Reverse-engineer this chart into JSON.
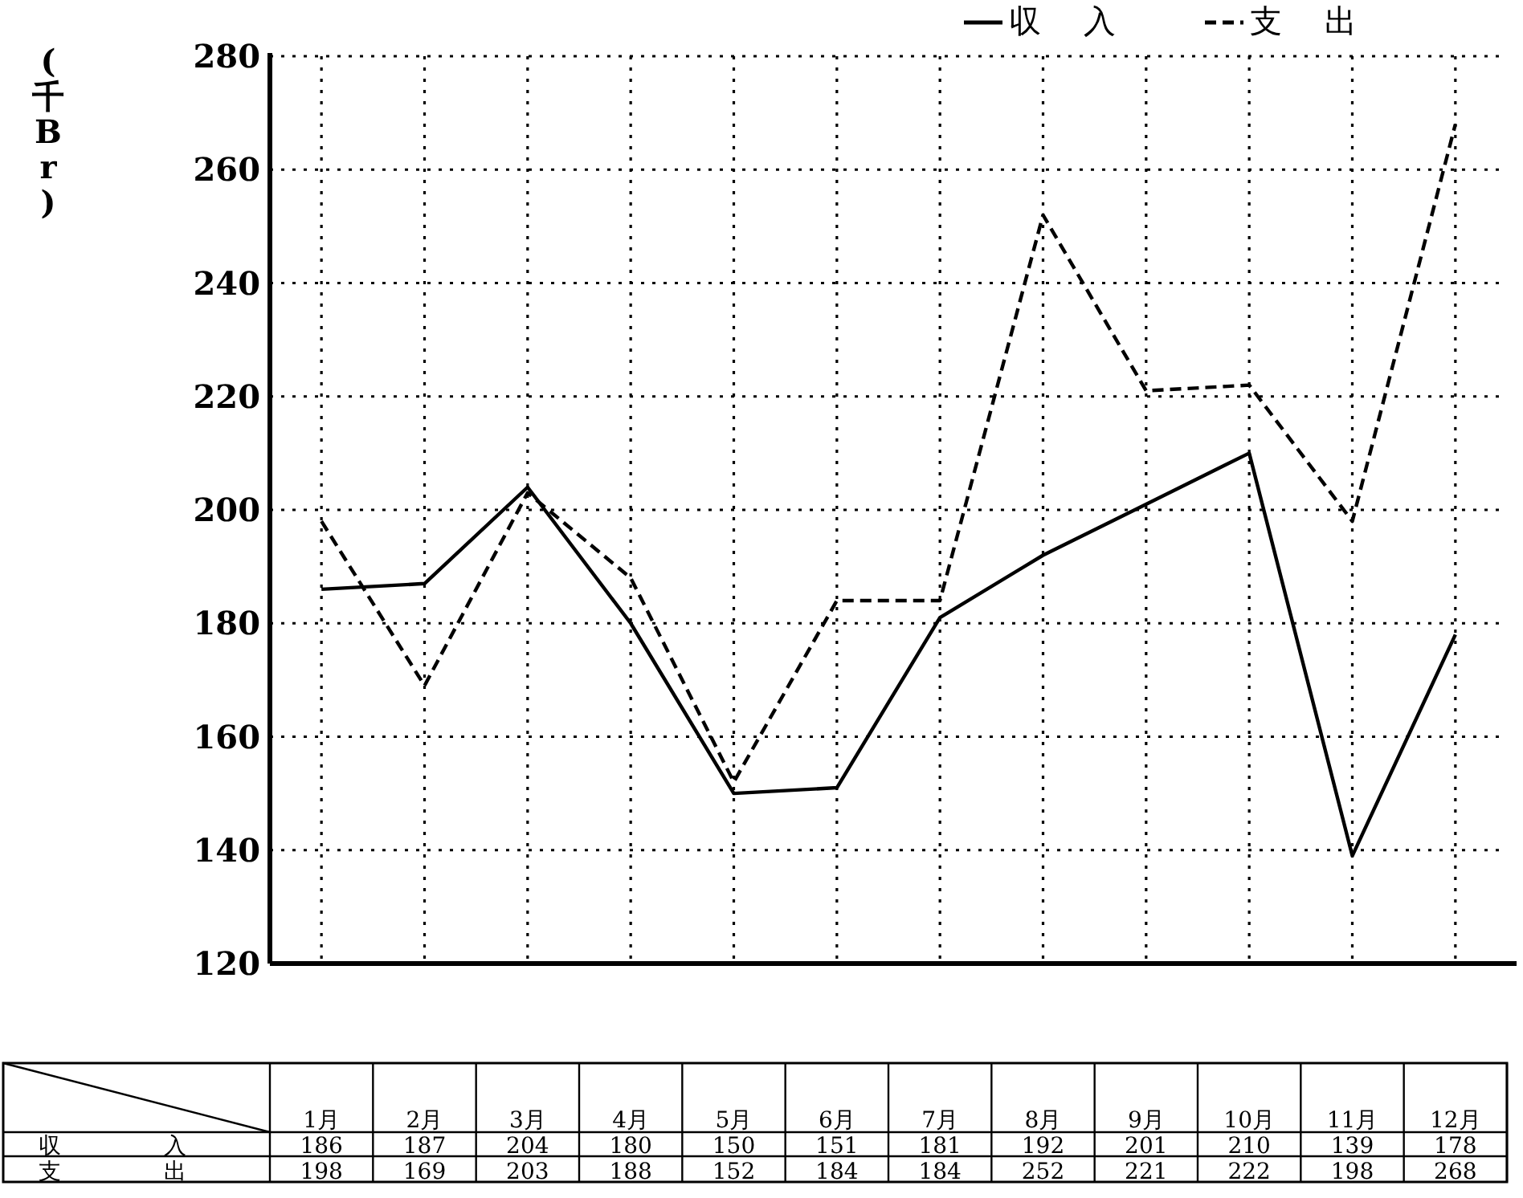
{
  "chart_data": {
    "type": "line",
    "ylabel": "(千Br)",
    "categories": [
      "1月",
      "2月",
      "3月",
      "4月",
      "5月",
      "6月",
      "7月",
      "8月",
      "9月",
      "10月",
      "11月",
      "12月"
    ],
    "series": [
      {
        "name": "収 入",
        "color": "#000000",
        "line_style": "solid",
        "values": [
          186,
          187,
          204,
          180,
          150,
          151,
          181,
          192,
          201,
          210,
          139,
          178
        ]
      },
      {
        "name": "支 出",
        "color": "#000000",
        "line_style": "dashed",
        "values": [
          198,
          169,
          203,
          188,
          152,
          184,
          184,
          252,
          221,
          222,
          198,
          268
        ]
      }
    ],
    "ylim": [
      120,
      280
    ],
    "yticks": [
      120,
      140,
      160,
      180,
      200,
      220,
      240,
      260,
      280
    ],
    "grid": true,
    "legend": "top right",
    "data_labels": true,
    "marker": "none"
  }
}
